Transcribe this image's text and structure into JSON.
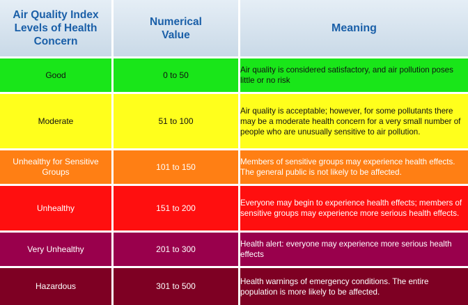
{
  "header": {
    "level": "Air Quality Index Levels of Health Concern",
    "value": "Numerical Value",
    "meaning": "Meaning"
  },
  "rows": [
    {
      "level": "Good",
      "value": "0 to 50",
      "meaning": "Air quality is considered satisfactory, and air pollution poses little or no risk",
      "color": "#19e619"
    },
    {
      "level": "Moderate",
      "value": "51 to 100",
      "meaning": "Air quality is acceptable; however, for some pollutants there may be a moderate health concern for a very small number of people who are unusually sensitive to air pollution.",
      "color": "#ffff1c"
    },
    {
      "level": "Unhealthy for Sensitive Groups",
      "value": "101 to 150",
      "meaning": "Members of sensitive groups may experience health effects. The general public is not likely to be affected.",
      "color": "#ff7f14"
    },
    {
      "level": "Unhealthy",
      "value": "151 to 200",
      "meaning": "Everyone may begin to experience health effects; members of sensitive groups may experience more serious health effects.",
      "color": "#ff0f0f"
    },
    {
      "level": "Very Unhealthy",
      "value": "201 to 300",
      "meaning": "Health alert: everyone may experience more serious health effects",
      "color": "#99004c"
    },
    {
      "level": "Hazardous",
      "value": "301 to 500",
      "meaning": "Health warnings of emergency conditions. The entire population is more likely to be affected.",
      "color": "#7e0023"
    }
  ]
}
